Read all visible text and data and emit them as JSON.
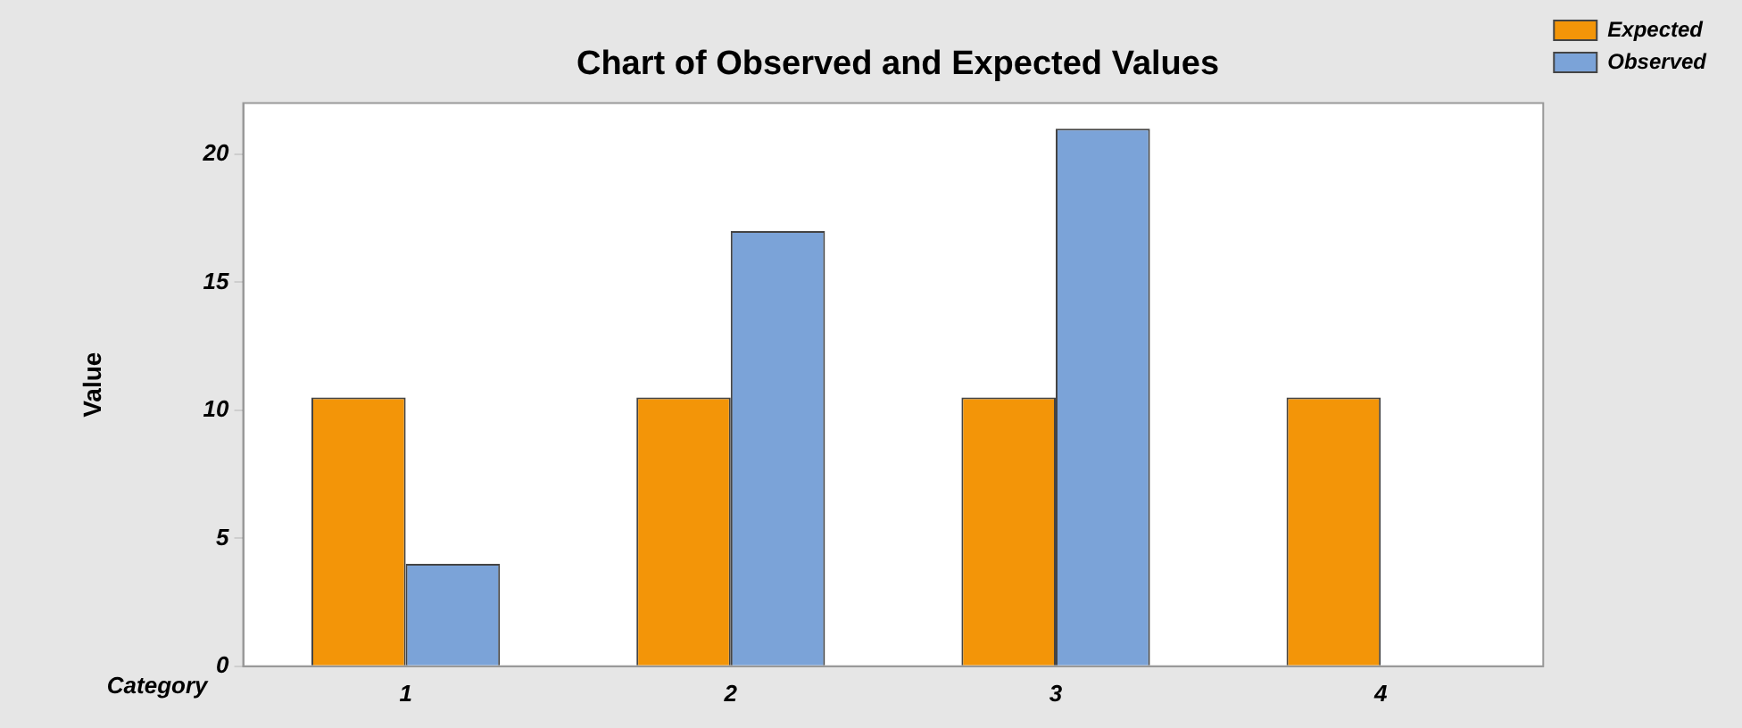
{
  "chart_data": {
    "type": "bar",
    "title": "Chart of Observed and Expected Values",
    "xlabel": "Category",
    "ylabel": "Value",
    "categories": [
      "1",
      "2",
      "3",
      "4"
    ],
    "series": [
      {
        "name": "Expected",
        "color": "#f39508",
        "values": [
          10.5,
          10.5,
          10.5,
          10.5
        ]
      },
      {
        "name": "Observed",
        "color": "#7ba3d8",
        "values": [
          4,
          17,
          21,
          0
        ]
      }
    ],
    "ylim": [
      0,
      22
    ],
    "yticks": [
      0,
      5,
      10,
      15,
      20
    ],
    "grid": false,
    "legend": "top right"
  }
}
